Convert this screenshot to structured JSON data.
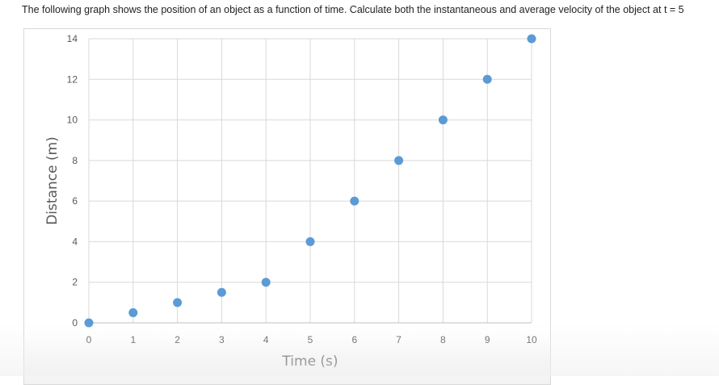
{
  "question": "The following graph shows the position of an object as a function of time. Calculate both the instantaneous and average velocity of the object at t = 5",
  "chart_data": {
    "type": "scatter",
    "title": "",
    "xlabel": "Time (s)",
    "ylabel": "Distance (m)",
    "xlim": [
      0,
      10
    ],
    "ylim": [
      0,
      14
    ],
    "x_ticks": [
      "0",
      "1",
      "2",
      "3",
      "4",
      "5",
      "6",
      "7",
      "8",
      "9",
      "10"
    ],
    "y_ticks": [
      "0",
      "2",
      "4",
      "6",
      "8",
      "10",
      "12",
      "14"
    ],
    "grid": true,
    "marker_color": "#5b9bd5",
    "points": {
      "x": [
        0,
        1,
        2,
        3,
        4,
        5,
        6,
        7,
        8,
        9,
        10
      ],
      "y": [
        0,
        0.5,
        1,
        1.5,
        2,
        4,
        6,
        8,
        10,
        12,
        14
      ]
    }
  }
}
